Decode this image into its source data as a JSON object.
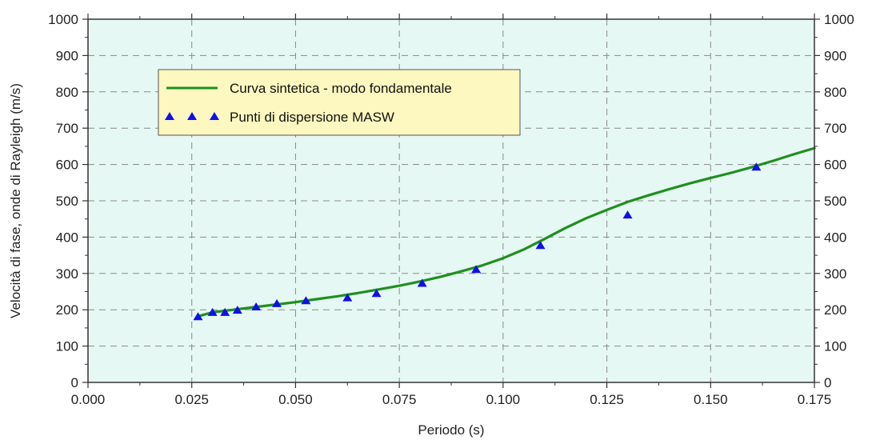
{
  "chart_data": {
    "type": "line",
    "title": "",
    "xlabel": "Periodo (s)",
    "ylabel": "Velocità di fase, onde di Rayleigh (m/s)",
    "xlim": [
      0.0,
      0.175
    ],
    "ylim": [
      0,
      1000
    ],
    "x_ticks": [
      "0.000",
      "0.025",
      "0.050",
      "0.075",
      "0.100",
      "0.125",
      "0.150",
      "0.175"
    ],
    "y_ticks": [
      "0",
      "100",
      "200",
      "300",
      "400",
      "500",
      "600",
      "700",
      "800",
      "900",
      "1000"
    ],
    "grid": true,
    "legend_position": "top-left",
    "background_color": "#e6f8f3",
    "series": [
      {
        "name": "Curva sintetica - modo fondamentale",
        "kind": "line",
        "color": "#1f8f1f",
        "x": [
          0.0265,
          0.03,
          0.035,
          0.04,
          0.045,
          0.05,
          0.055,
          0.06,
          0.065,
          0.07,
          0.075,
          0.08,
          0.085,
          0.09,
          0.095,
          0.1,
          0.105,
          0.11,
          0.115,
          0.12,
          0.125,
          0.13,
          0.135,
          0.14,
          0.145,
          0.15,
          0.155,
          0.16,
          0.165,
          0.17,
          0.175
        ],
        "y": [
          182,
          193,
          200,
          207,
          214,
          221,
          229,
          237,
          246,
          256,
          266,
          278,
          291,
          306,
          322,
          342,
          366,
          395,
          425,
          452,
          475,
          497,
          515,
          532,
          548,
          563,
          577,
          593,
          610,
          628,
          645
        ]
      },
      {
        "name": "Punti di dispersione MASW",
        "kind": "scatter",
        "marker": "triangle",
        "color": "#1010e8",
        "x": [
          0.0265,
          0.03,
          0.033,
          0.036,
          0.0405,
          0.0455,
          0.0525,
          0.0625,
          0.0695,
          0.0805,
          0.0935,
          0.109,
          0.13,
          0.161
        ],
        "y": [
          180,
          192,
          192,
          198,
          207,
          216,
          224,
          232,
          244,
          272,
          310,
          376,
          460,
          592
        ]
      }
    ]
  }
}
